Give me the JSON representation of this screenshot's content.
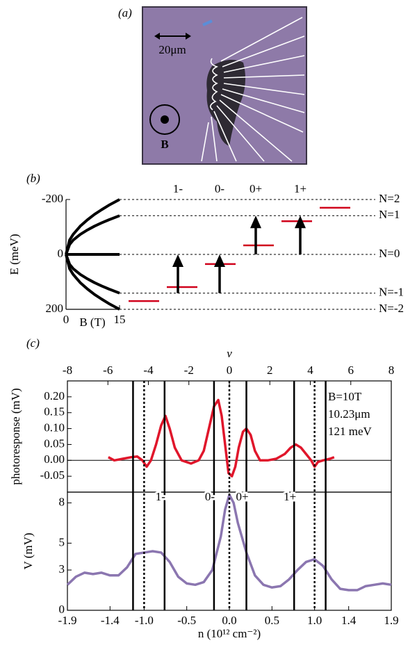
{
  "panel_a": {
    "label": "(a)",
    "scale_bar": "20μm",
    "field_label": "B"
  },
  "chart_data": [
    {
      "type": "line",
      "panel_label": "(b)",
      "ylabel": "E (meV)",
      "xlabel": "B (T)",
      "xlim": [
        0,
        15
      ],
      "ylim": [
        200,
        -200
      ],
      "xticks": [
        0,
        15
      ],
      "yticks": [
        -200,
        0,
        200
      ],
      "x": [
        0,
        1,
        2,
        4,
        6,
        8,
        10,
        12,
        15
      ],
      "series": [
        {
          "color": "#000000",
          "values": [
            0,
            -52,
            -73,
            -103,
            -126,
            -146,
            -163,
            -179,
            -200
          ]
        },
        {
          "color": "#000000",
          "values": [
            0,
            -36,
            -52,
            -73,
            -89,
            -103,
            -115,
            -126,
            -141
          ]
        },
        {
          "color": "#000000",
          "values": [
            0,
            0,
            0,
            0,
            0,
            0,
            0,
            0,
            0
          ]
        },
        {
          "color": "#000000",
          "values": [
            0,
            36,
            52,
            73,
            89,
            103,
            115,
            126,
            141
          ]
        },
        {
          "color": "#000000",
          "values": [
            0,
            52,
            73,
            103,
            126,
            146,
            163,
            179,
            200
          ]
        }
      ],
      "levels": [
        {
          "label": "N=2",
          "value": -200
        },
        {
          "label": "N=1",
          "value": -141
        },
        {
          "label": "N=0",
          "value": 0
        },
        {
          "label": "N=-1",
          "value": 141
        },
        {
          "label": "N=-2",
          "value": 200
        }
      ],
      "level_markers": {
        "color": "#d0021b",
        "values": [
          170,
          119,
          35,
          -33,
          -121,
          -170
        ]
      },
      "transitions": [
        {
          "label": "1-",
          "from": 141,
          "to": 0
        },
        {
          "label": "0-",
          "from": 141,
          "to": 0
        },
        {
          "label": "0+",
          "from": 0,
          "to": -141
        },
        {
          "label": "1+",
          "from": 0,
          "to": -141
        }
      ]
    },
    {
      "type": "line",
      "panel_label": "(c)",
      "ylabel": "photoresponse (mV)",
      "x2label": "ν",
      "xlim": [
        -1.9,
        1.9
      ],
      "x2lim": [
        -8,
        8
      ],
      "x2ticks": [
        -8,
        -6,
        -4,
        -2,
        0,
        2,
        4,
        6,
        8
      ],
      "ylim": [
        -0.1,
        0.25
      ],
      "yticks": [
        {
          "value": 0.2,
          "label": "0.20"
        },
        0.15,
        {
          "value": 0.1,
          "label": "0.10"
        },
        0.05,
        {
          "value": 0,
          "label": "0.00"
        },
        -0.05
      ],
      "zero_line": true,
      "annotations": [
        "B=10T",
        "10.23μm",
        "121  meV"
      ],
      "x": [
        -1.42,
        -1.35,
        -1.25,
        -1.15,
        -1.08,
        -1.02,
        -0.97,
        -0.92,
        -0.86,
        -0.8,
        -0.75,
        -0.7,
        -0.64,
        -0.56,
        -0.45,
        -0.36,
        -0.3,
        -0.24,
        -0.18,
        -0.13,
        -0.09,
        -0.05,
        -0.01,
        0.03,
        0.07,
        0.11,
        0.16,
        0.2,
        0.25,
        0.3,
        0.36,
        0.45,
        0.55,
        0.65,
        0.72,
        0.78,
        0.84,
        0.9,
        0.96,
        1.0,
        1.04,
        1.1,
        1.18,
        1.23
      ],
      "series": [
        {
          "color": "#e0162b",
          "values": [
            0.01,
            0,
            0.005,
            0.01,
            0.012,
            0,
            -0.02,
            0,
            0.05,
            0.11,
            0.14,
            0.1,
            0.04,
            0,
            -0.01,
            0,
            0.03,
            0.1,
            0.17,
            0.19,
            0.14,
            0.05,
            -0.04,
            -0.05,
            -0.02,
            0.04,
            0.09,
            0.1,
            0.08,
            0.03,
            0,
            0,
            0.005,
            0.02,
            0.04,
            0.05,
            0.04,
            0.02,
            0,
            -0.02,
            -0.005,
            0,
            0.005,
            0.01
          ]
        }
      ]
    },
    {
      "type": "line",
      "ylabel": "V (mV)",
      "xlabel": "n (10¹² cm⁻²)",
      "xlim": [
        -1.9,
        1.9
      ],
      "ylim": [
        0,
        8.8
      ],
      "yticks": [
        0,
        3,
        5,
        8
      ],
      "xticks": [
        -1.9,
        -1.4,
        {
          "value": -1,
          "label": "-1.0"
        },
        -0.5,
        {
          "value": 0,
          "label": "0.0"
        },
        0.5,
        {
          "value": 1,
          "label": "1.0"
        },
        1.4,
        1.9
      ],
      "vlines": {
        "solid": [
          -1.13,
          -0.76,
          -0.18,
          0.2,
          0.76,
          1.13
        ],
        "dotted": [
          -1,
          0,
          1
        ]
      },
      "transition_labels": [
        "1-",
        "0-",
        "0+",
        "1+"
      ],
      "x": [
        -1.9,
        -1.8,
        -1.7,
        -1.6,
        -1.5,
        -1.4,
        -1.3,
        -1.2,
        -1.1,
        -1.0,
        -0.9,
        -0.8,
        -0.7,
        -0.6,
        -0.5,
        -0.4,
        -0.3,
        -0.2,
        -0.1,
        -0.05,
        0.0,
        0.05,
        0.1,
        0.2,
        0.3,
        0.4,
        0.5,
        0.6,
        0.7,
        0.8,
        0.9,
        1.0,
        1.1,
        1.2,
        1.3,
        1.4,
        1.5,
        1.6,
        1.7,
        1.8,
        1.9
      ],
      "series": [
        {
          "color": "#8b76b0",
          "values": [
            1.9,
            2.5,
            2.8,
            2.7,
            2.8,
            2.6,
            2.6,
            3.2,
            4.2,
            4.3,
            4.4,
            4.3,
            3.6,
            2.5,
            2.0,
            1.9,
            2.1,
            3.0,
            5.5,
            7.5,
            8.6,
            8.0,
            6.5,
            4.3,
            2.6,
            1.9,
            1.7,
            1.8,
            2.3,
            3.0,
            3.6,
            3.8,
            3.3,
            2.3,
            1.6,
            1.5,
            1.5,
            1.8,
            1.9,
            2.0,
            1.9
          ]
        }
      ]
    }
  ]
}
